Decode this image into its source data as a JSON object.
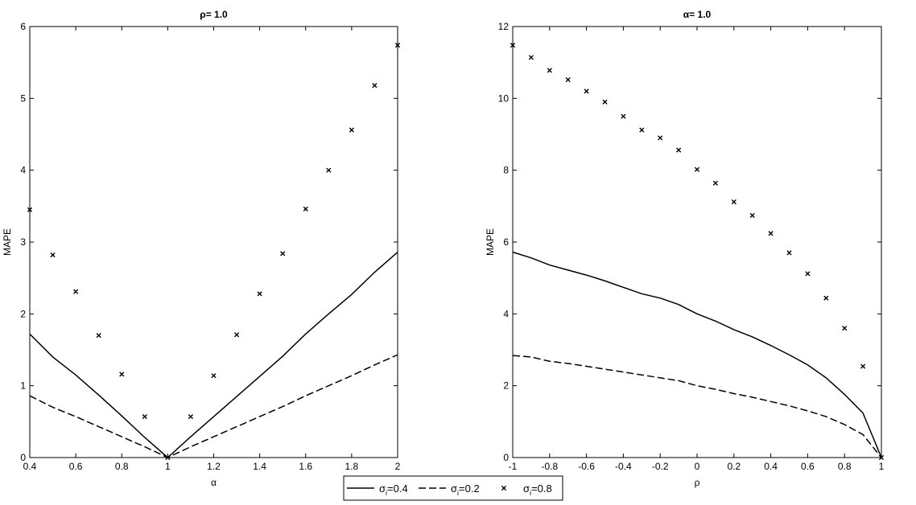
{
  "chart_data": [
    {
      "type": "line",
      "title": "ρ= 1.0",
      "xlabel": "α",
      "ylabel": "MAPE",
      "xlim": [
        0.4,
        2
      ],
      "ylim": [
        0,
        6
      ],
      "xticks": [
        0.4,
        0.6,
        0.8,
        1,
        1.2,
        1.4,
        1.6,
        1.8,
        2
      ],
      "xticklabels": [
        "0.4",
        "0.6",
        "0.8",
        "1",
        "1.2",
        "1.4",
        "1.6",
        "1.8",
        "2"
      ],
      "yticks": [
        0,
        1,
        2,
        3,
        4,
        5,
        6
      ],
      "yticklabels": [
        "0",
        "1",
        "2",
        "3",
        "4",
        "5",
        "6"
      ],
      "grid": false,
      "series": [
        {
          "name": "σi=0.4",
          "style": "solid",
          "x": [
            0.4,
            0.5,
            0.6,
            0.7,
            0.8,
            0.9,
            1.0,
            1.1,
            1.2,
            1.3,
            1.4,
            1.5,
            1.6,
            1.7,
            1.8,
            1.9,
            2.0
          ],
          "y": [
            1.72,
            1.4,
            1.15,
            0.87,
            0.58,
            0.28,
            0,
            0.29,
            0.57,
            0.85,
            1.13,
            1.41,
            1.72,
            2.0,
            2.27,
            2.58,
            2.86
          ]
        },
        {
          "name": "σi=0.2",
          "style": "dashed",
          "x": [
            0.4,
            0.5,
            0.6,
            0.7,
            0.8,
            0.9,
            1.0,
            1.1,
            1.2,
            1.3,
            1.4,
            1.5,
            1.6,
            1.7,
            1.8,
            1.9,
            2.0
          ],
          "y": [
            0.86,
            0.7,
            0.57,
            0.43,
            0.29,
            0.15,
            0,
            0.15,
            0.29,
            0.43,
            0.57,
            0.71,
            0.86,
            1.0,
            1.14,
            1.29,
            1.43
          ]
        },
        {
          "name": "σi=0.8",
          "style": "marker",
          "x": [
            0.4,
            0.5,
            0.6,
            0.7,
            0.8,
            0.9,
            1.0,
            1.1,
            1.2,
            1.3,
            1.4,
            1.5,
            1.6,
            1.7,
            1.8,
            1.9,
            2.0
          ],
          "y": [
            3.45,
            2.82,
            2.31,
            1.7,
            1.16,
            0.57,
            0,
            0.57,
            1.14,
            1.71,
            2.28,
            2.84,
            3.46,
            4.0,
            4.56,
            5.18,
            5.74
          ]
        }
      ]
    },
    {
      "type": "line",
      "title": "α= 1.0",
      "xlabel": "ρ",
      "ylabel": "MAPE",
      "xlim": [
        -1,
        1
      ],
      "ylim": [
        0,
        12
      ],
      "xticks": [
        -1,
        -0.8,
        -0.6,
        -0.4,
        -0.2,
        0,
        0.2,
        0.4,
        0.6,
        0.8,
        1
      ],
      "xticklabels": [
        "-1",
        "-0.8",
        "-0.6",
        "-0.4",
        "-0.2",
        "0",
        "0.2",
        "0.4",
        "0.6",
        "0.8",
        "1"
      ],
      "yticks": [
        0,
        2,
        4,
        6,
        8,
        10,
        12
      ],
      "yticklabels": [
        "0",
        "2",
        "4",
        "6",
        "8",
        "10",
        "12"
      ],
      "grid": false,
      "series": [
        {
          "name": "σi=0.4",
          "style": "solid",
          "x": [
            -1,
            -0.9,
            -0.8,
            -0.7,
            -0.6,
            -0.5,
            -0.4,
            -0.3,
            -0.2,
            -0.1,
            0,
            0.1,
            0.2,
            0.3,
            0.4,
            0.5,
            0.6,
            0.7,
            0.8,
            0.9,
            1.0
          ],
          "y": [
            5.72,
            5.56,
            5.36,
            5.22,
            5.08,
            4.92,
            4.74,
            4.56,
            4.44,
            4.26,
            4.0,
            3.8,
            3.56,
            3.36,
            3.12,
            2.86,
            2.58,
            2.22,
            1.76,
            1.24,
            0
          ]
        },
        {
          "name": "σi=0.2",
          "style": "dashed",
          "x": [
            -1,
            -0.9,
            -0.8,
            -0.7,
            -0.6,
            -0.5,
            -0.4,
            -0.3,
            -0.2,
            -0.1,
            0,
            0.1,
            0.2,
            0.3,
            0.4,
            0.5,
            0.6,
            0.7,
            0.8,
            0.9,
            1.0
          ],
          "y": [
            2.84,
            2.8,
            2.68,
            2.62,
            2.54,
            2.46,
            2.38,
            2.3,
            2.22,
            2.14,
            2.0,
            1.9,
            1.78,
            1.68,
            1.56,
            1.44,
            1.3,
            1.14,
            0.92,
            0.64,
            0
          ]
        },
        {
          "name": "σi=0.8",
          "style": "marker",
          "x": [
            -1,
            -0.9,
            -0.8,
            -0.7,
            -0.6,
            -0.5,
            -0.4,
            -0.3,
            -0.2,
            -0.1,
            0,
            0.1,
            0.2,
            0.3,
            0.4,
            0.5,
            0.6,
            0.7,
            0.8,
            0.9,
            1.0
          ],
          "y": [
            11.48,
            11.14,
            10.78,
            10.52,
            10.2,
            9.9,
            9.5,
            9.12,
            8.9,
            8.56,
            8.02,
            7.64,
            7.12,
            6.74,
            6.24,
            5.7,
            5.12,
            4.44,
            3.6,
            2.54,
            0
          ]
        }
      ]
    }
  ],
  "legend": {
    "placement": "bottom-center",
    "entries": [
      {
        "label_main": "σ",
        "label_sub": "i",
        "label_rest": "=0.4",
        "style": "solid"
      },
      {
        "label_main": "σ",
        "label_sub": "i",
        "label_rest": "=0.2",
        "style": "dashed"
      },
      {
        "label_main": "σ",
        "label_sub": "i",
        "label_rest": "=0.8",
        "style": "marker"
      }
    ]
  }
}
